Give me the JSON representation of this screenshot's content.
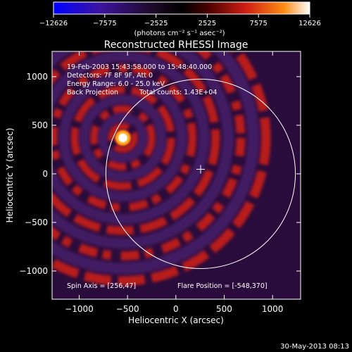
{
  "chart_data": {
    "type": "heatmap",
    "title": "Reconstructed RHESSI Image",
    "xlabel": "Heliocentric X (arcsec)",
    "ylabel": "Heliocentric Y (arcsec)",
    "xlim": [
      -1280,
      1290
    ],
    "ylim": [
      -1290,
      1260
    ],
    "x_ticks": [
      -1000,
      -500,
      0,
      500,
      1000
    ],
    "y_ticks": [
      -1000,
      -500,
      0,
      500,
      1000
    ],
    "x_tick_labels": [
      "−1000",
      "−500",
      "0",
      "500",
      "1000"
    ],
    "y_tick_labels": [
      "−1000",
      "−500",
      "0",
      "500",
      "1000"
    ],
    "colorbar": {
      "ticks": [
        -12626,
        -7575,
        -2525,
        2525,
        7575,
        12626
      ],
      "tick_labels": [
        "−12626",
        "−7575",
        "−2525",
        "2525",
        "7575",
        "12626"
      ],
      "units_label": "(photons cm⁻² s⁻¹ asec⁻²)",
      "range": [
        -12626,
        12626
      ]
    },
    "annotations": {
      "time_range": "19-Feb-2003 15:43:58.000 to 15:48:40.000",
      "detectors": "Detectors: 7F 8F 9F, Att 0",
      "energy_range": "Energy Range: 6.0 - 25.0 keV",
      "method": "Back Projection",
      "total_counts": "Total counts: 1.43E+04",
      "spin_axis": "Spin Axis = [256,47]",
      "flare_position": "Flare Position = [-548,370]"
    },
    "source": {
      "x": -548,
      "y": 370
    },
    "spin_axis_point": {
      "x": 256,
      "y": 47
    },
    "solar_disk": {
      "center_x": 256,
      "center_y": 0,
      "radius": 980
    },
    "grid": false
  },
  "footer": {
    "date": "30-May-2013 08:13"
  },
  "colors": {
    "background": "#000000",
    "text": "#ffffff",
    "colormap": [
      "#0000ff",
      "#3c14a0",
      "#1e0a2a",
      "#000000",
      "#460000",
      "#cd1e14",
      "#ff8c14",
      "#ffffff"
    ]
  }
}
